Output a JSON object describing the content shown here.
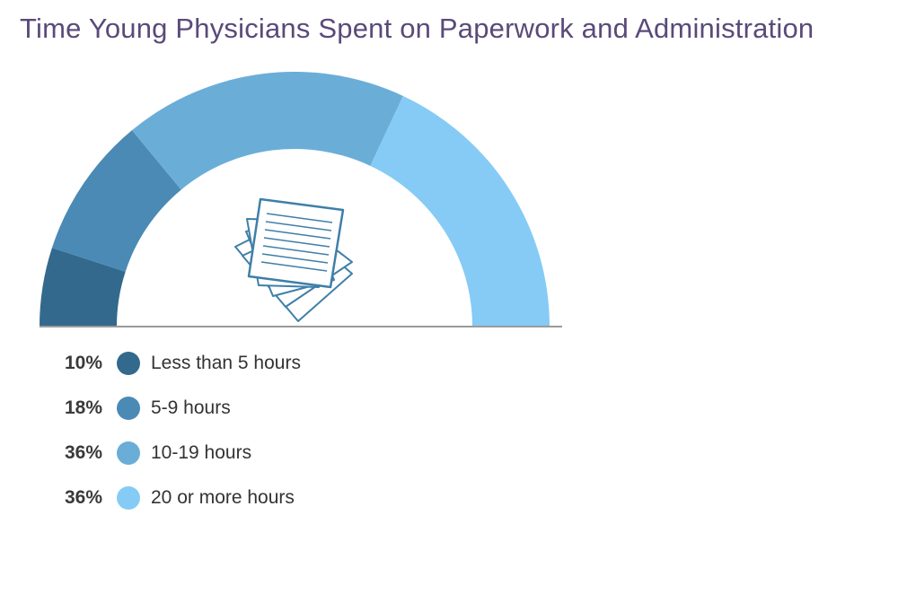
{
  "chart_data": {
    "type": "pie",
    "variant": "semicircle-donut",
    "title": "Time Young Physicians Spent on Paperwork and Administration",
    "slices": [
      {
        "label": "Less than 5 hours",
        "value": 10,
        "value_label": "10%",
        "color": "#33698c"
      },
      {
        "label": "5-9 hours",
        "value": 18,
        "value_label": "18%",
        "color": "#4a8ab5"
      },
      {
        "label": "10-19 hours",
        "value": 36,
        "value_label": "36%",
        "color": "#6aaed8"
      },
      {
        "label": "20 or more hours",
        "value": 36,
        "value_label": "36%",
        "color": "#85cbf5"
      }
    ],
    "legend": "bottom-left",
    "center_icon": "paper-stack-icon"
  }
}
